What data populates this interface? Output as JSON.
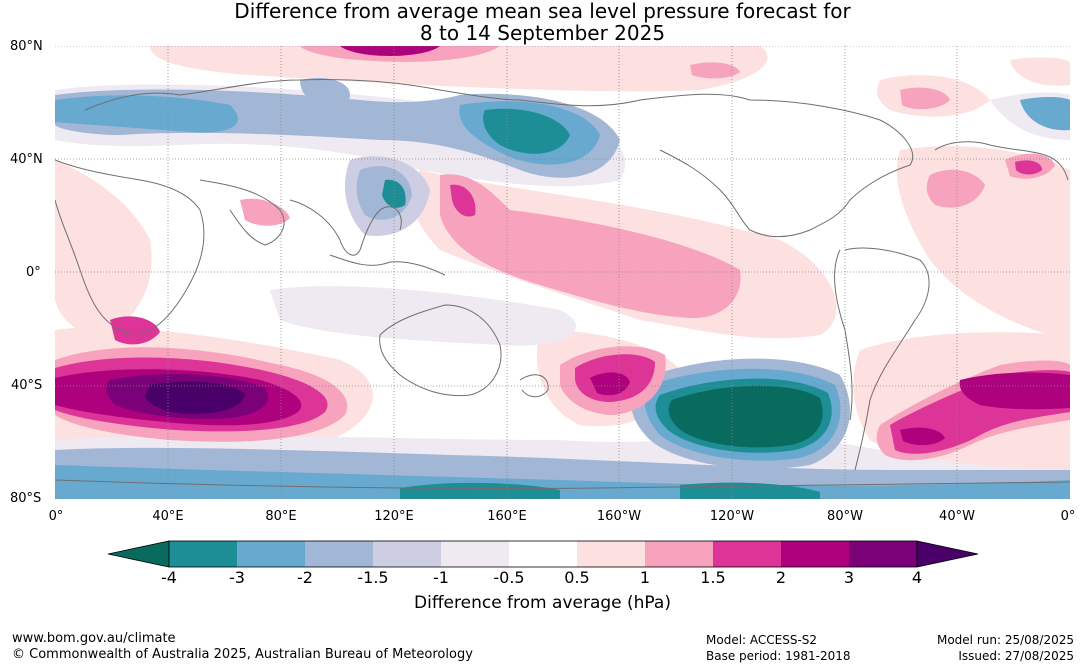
{
  "title_line1": "Difference from average mean sea level pressure forecast for",
  "title_line2": "8 to 14 September 2025",
  "lat_labels": [
    "80°N",
    "40°N",
    "0°",
    "40°S",
    "80°S"
  ],
  "lon_labels": [
    "0°",
    "40°E",
    "80°E",
    "120°E",
    "160°E",
    "160°W",
    "120°W",
    "80°W",
    "40°W",
    "0°"
  ],
  "colorbar": {
    "ticks": [
      "-4",
      "-3",
      "-2",
      "-1.5",
      "-1",
      "-0.5",
      "0.5",
      "1",
      "1.5",
      "2",
      "3",
      "4"
    ],
    "colors": [
      "#1d8e96",
      "#67a9cf",
      "#a2b6d6",
      "#cdcde3",
      "#efe9f2",
      "#ffffff",
      "#fde0e0",
      "#f7a3bd",
      "#dd3497",
      "#ae017e",
      "#7a0177"
    ],
    "low_extend_color": "#086b5e",
    "high_extend_color": "#4a0069",
    "label": "Difference from average (hPa)"
  },
  "footer": {
    "url": "www.bom.gov.au/climate",
    "copyright": "© Commonwealth of Australia 2025, Australian Bureau of Meteorology",
    "model": "Model: ACCESS-S2",
    "base_period": "Base period: 1981-2018",
    "model_run": "Model run: 25/08/2025",
    "issued": "Issued: 27/08/2025"
  }
}
